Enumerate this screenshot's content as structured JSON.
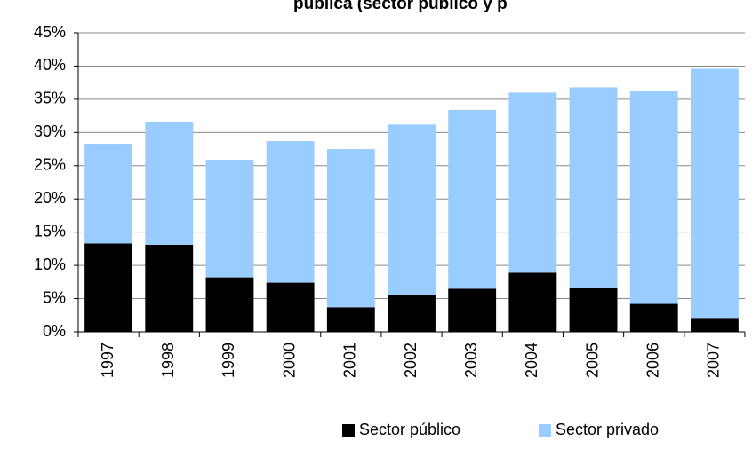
{
  "chart_data": {
    "type": "stacked-bar",
    "title": "pública (sector público y p",
    "categories": [
      "1997",
      "1998",
      "1999",
      "2000",
      "2001",
      "2002",
      "2003",
      "2004",
      "2005",
      "2006",
      "2007"
    ],
    "series": [
      {
        "name": "Sector público",
        "color": "#000000",
        "values": [
          13.3,
          13.1,
          8.2,
          7.4,
          3.7,
          5.6,
          6.5,
          8.9,
          6.7,
          4.2,
          2.1
        ]
      },
      {
        "name": "Sector privado",
        "color": "#99ccff",
        "values": [
          15.0,
          18.5,
          17.7,
          21.3,
          23.8,
          25.6,
          26.9,
          27.1,
          30.1,
          32.1,
          37.5
        ]
      }
    ],
    "ylim": [
      0,
      45
    ],
    "yticks": [
      {
        "value": 0,
        "label": "0%"
      },
      {
        "value": 5,
        "label": "5%"
      },
      {
        "value": 10,
        "label": "10%"
      },
      {
        "value": 15,
        "label": "15%"
      },
      {
        "value": 20,
        "label": "20%"
      },
      {
        "value": 25,
        "label": "25%"
      },
      {
        "value": 30,
        "label": "30%"
      },
      {
        "value": 35,
        "label": "35%"
      },
      {
        "value": 40,
        "label": "40%"
      },
      {
        "value": 45,
        "label": "45%"
      }
    ],
    "grid": true,
    "legend": "bottom"
  }
}
